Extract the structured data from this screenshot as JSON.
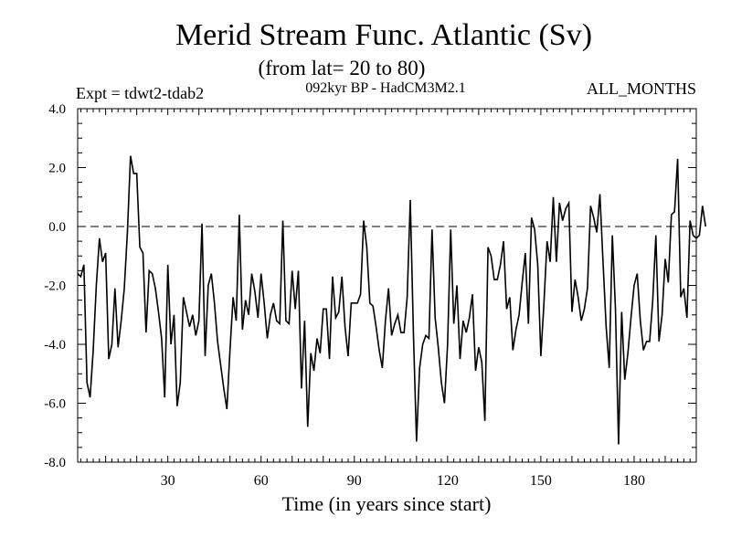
{
  "chart_data": {
    "type": "line",
    "title": "Merid Stream Func. Atlantic (Sv)",
    "subtitle": "(from lat= 20 to 80)",
    "annotation_left": "Expt = tdwt2-tdab2",
    "annotation_center": "092kyr BP - HadCM3M2.1",
    "annotation_right": "ALL_MONTHS",
    "xlabel": "Time (in years since start)",
    "ylabel": "",
    "xlim": [
      1,
      200
    ],
    "ylim": [
      -8,
      4
    ],
    "x_ticks": [
      30,
      60,
      90,
      120,
      150,
      180
    ],
    "x_tick_labels": [
      "30",
      "60",
      "90",
      "120",
      "150",
      "180"
    ],
    "y_ticks": [
      -8,
      -6,
      -4,
      -2,
      0,
      2,
      4
    ],
    "y_tick_labels": [
      "-8.0",
      "-6.0",
      "-4.0",
      "-2.0",
      "0.0",
      "2.0",
      "4.0"
    ],
    "reference_line": 0,
    "line_color": "#000000",
    "series": [
      {
        "name": "Merid Stream Func.",
        "x_start": 1,
        "x_step": 1,
        "values": [
          -1.6,
          -1.7,
          -1.3,
          -5.3,
          -5.8,
          -4.2,
          -2.0,
          -0.4,
          -1.2,
          -0.9,
          -4.5,
          -4.0,
          -2.1,
          -4.1,
          -3.2,
          -2.1,
          -0.2,
          2.4,
          1.8,
          1.8,
          -0.7,
          -0.9,
          -3.6,
          -1.5,
          -1.6,
          -2.1,
          -2.9,
          -3.8,
          -5.8,
          -1.3,
          -4.0,
          -3.0,
          -6.1,
          -5.3,
          -2.4,
          -2.9,
          -3.4,
          -3.0,
          -3.7,
          -3.2,
          0.1,
          -4.4,
          -2.0,
          -1.6,
          -2.6,
          -3.9,
          -4.7,
          -5.5,
          -6.2,
          -4.2,
          -2.4,
          -3.2,
          0.4,
          -3.5,
          -2.5,
          -3.0,
          -1.6,
          -2.2,
          -3.1,
          -1.6,
          -2.6,
          -3.8,
          -3.0,
          -2.6,
          -3.2,
          -3.3,
          0.2,
          -3.2,
          -3.3,
          -1.5,
          -2.8,
          -1.5,
          -5.5,
          -3.2,
          -6.8,
          -4.3,
          -4.9,
          -3.8,
          -4.3,
          -2.8,
          -2.8,
          -4.5,
          -1.7,
          -3.1,
          -2.9,
          -1.7,
          -3.4,
          -4.4,
          -2.6,
          -2.6,
          -2.6,
          -2.3,
          0.2,
          -0.7,
          -2.6,
          -2.7,
          -3.4,
          -4.2,
          -4.8,
          -3.2,
          -2.1,
          -3.7,
          -3.3,
          -3.0,
          -3.6,
          -3.6,
          -2.4,
          0.9,
          -3.6,
          -7.3,
          -4.8,
          -4.0,
          -3.7,
          -3.8,
          -0.1,
          -3.1,
          -4.1,
          -5.3,
          -6.0,
          -4.0,
          -0.1,
          -3.3,
          -2.0,
          -4.5,
          -3.2,
          -3.6,
          -3.1,
          -2.3,
          -4.9,
          -4.1,
          -4.6,
          -6.6,
          -0.7,
          -1.0,
          -1.8,
          -1.8,
          -1.3,
          -0.5,
          -2.8,
          -2.4,
          -4.2,
          -3.5,
          -3.0,
          -1.9,
          -0.9,
          -3.3,
          0.3,
          -0.1,
          -1.3,
          -4.4,
          -2.6,
          -0.5,
          -1.2,
          1.0,
          -1.2,
          0.8,
          0.2,
          0.6,
          0.8,
          -2.9,
          -1.8,
          -2.4,
          -3.2,
          -2.8,
          -2.1,
          0.7,
          0.3,
          -0.2,
          1.1,
          -1.2,
          -3.4,
          -4.8,
          -0.3,
          -2.8,
          -7.4,
          -2.9,
          -5.2,
          -4.3,
          -3.1,
          -2.0,
          -1.6,
          -3.2,
          -4.2,
          -3.9,
          -3.9,
          -2.5,
          -0.3,
          -3.9,
          -3.0,
          -1.1,
          -1.9,
          0.4,
          0.5,
          2.3,
          -2.4,
          -2.1,
          -3.1,
          0.2,
          -0.3,
          -0.4,
          -0.3,
          0.7,
          0.0
        ]
      }
    ]
  }
}
